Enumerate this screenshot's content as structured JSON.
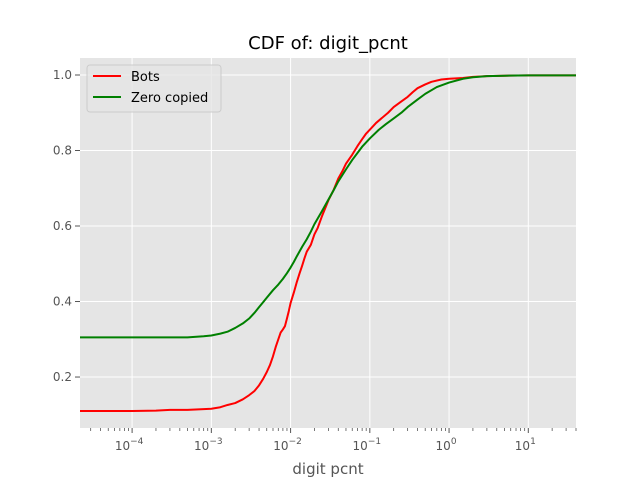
{
  "chart_data": {
    "type": "line",
    "title": "CDF of: digit_pcnt",
    "xlabel": "digit pcnt",
    "ylabel": "",
    "xscale": "log",
    "xlim": [
      2.2e-05,
      40
    ],
    "ylim": [
      0.065,
      1.045
    ],
    "grid": true,
    "legend_position": "top-left",
    "x_ticks": [
      {
        "value": 0.0001,
        "base": "10",
        "exp": "−4"
      },
      {
        "value": 0.001,
        "base": "10",
        "exp": "−3"
      },
      {
        "value": 0.01,
        "base": "10",
        "exp": "−2"
      },
      {
        "value": 0.1,
        "base": "10",
        "exp": "−1"
      },
      {
        "value": 1,
        "base": "10",
        "exp": "0"
      },
      {
        "value": 10,
        "base": "10",
        "exp": "1"
      }
    ],
    "y_ticks": [
      {
        "value": 0.2,
        "label": "0.2"
      },
      {
        "value": 0.4,
        "label": "0.4"
      },
      {
        "value": 0.6,
        "label": "0.6"
      },
      {
        "value": 0.8,
        "label": "0.8"
      },
      {
        "value": 1.0,
        "label": "1.0"
      }
    ],
    "series": [
      {
        "name": "Bots",
        "color": "#ff0000",
        "x": [
          2.2e-05,
          0.0001,
          0.0002,
          0.0003,
          0.0005,
          0.0008,
          0.001,
          0.0013,
          0.0016,
          0.002,
          0.0025,
          0.003,
          0.0035,
          0.004,
          0.0045,
          0.005,
          0.0055,
          0.006,
          0.0065,
          0.007,
          0.0075,
          0.008,
          0.0085,
          0.009,
          0.0095,
          0.01,
          0.011,
          0.012,
          0.013,
          0.014,
          0.015,
          0.016,
          0.018,
          0.02,
          0.022,
          0.025,
          0.03,
          0.035,
          0.04,
          0.045,
          0.05,
          0.06,
          0.07,
          0.08,
          0.09,
          0.1,
          0.12,
          0.14,
          0.17,
          0.2,
          0.25,
          0.3,
          0.35,
          0.4,
          0.5,
          0.6,
          0.8,
          1,
          1.5,
          2,
          3,
          5,
          10,
          20,
          40
        ],
        "y": [
          0.11,
          0.11,
          0.111,
          0.113,
          0.113,
          0.115,
          0.116,
          0.12,
          0.126,
          0.131,
          0.141,
          0.152,
          0.163,
          0.178,
          0.195,
          0.213,
          0.232,
          0.255,
          0.28,
          0.3,
          0.318,
          0.326,
          0.335,
          0.355,
          0.375,
          0.396,
          0.424,
          0.452,
          0.475,
          0.495,
          0.515,
          0.532,
          0.55,
          0.578,
          0.595,
          0.627,
          0.668,
          0.696,
          0.726,
          0.745,
          0.765,
          0.789,
          0.812,
          0.83,
          0.845,
          0.855,
          0.873,
          0.885,
          0.9,
          0.915,
          0.93,
          0.942,
          0.955,
          0.965,
          0.975,
          0.982,
          0.988,
          0.99,
          0.992,
          0.995,
          0.997,
          0.998,
          0.999,
          0.999,
          0.999
        ]
      },
      {
        "name": "Zero copied",
        "color": "#008000",
        "x": [
          2.2e-05,
          0.0001,
          0.0003,
          0.0005,
          0.0008,
          0.001,
          0.0013,
          0.0016,
          0.002,
          0.0025,
          0.003,
          0.0035,
          0.004,
          0.0045,
          0.005,
          0.006,
          0.007,
          0.008,
          0.009,
          0.01,
          0.011,
          0.012,
          0.014,
          0.016,
          0.018,
          0.02,
          0.025,
          0.03,
          0.035,
          0.04,
          0.05,
          0.06,
          0.08,
          0.1,
          0.13,
          0.16,
          0.2,
          0.25,
          0.3,
          0.4,
          0.5,
          0.7,
          1,
          1.5,
          2,
          3,
          5,
          10,
          20,
          40
        ],
        "y": [
          0.305,
          0.305,
          0.305,
          0.305,
          0.308,
          0.31,
          0.315,
          0.32,
          0.33,
          0.342,
          0.355,
          0.37,
          0.385,
          0.398,
          0.41,
          0.43,
          0.445,
          0.46,
          0.475,
          0.49,
          0.505,
          0.52,
          0.545,
          0.565,
          0.585,
          0.605,
          0.64,
          0.67,
          0.695,
          0.718,
          0.75,
          0.775,
          0.81,
          0.832,
          0.855,
          0.87,
          0.885,
          0.9,
          0.915,
          0.935,
          0.95,
          0.968,
          0.98,
          0.99,
          0.994,
          0.997,
          0.998,
          0.999,
          0.999,
          0.999
        ]
      }
    ]
  }
}
